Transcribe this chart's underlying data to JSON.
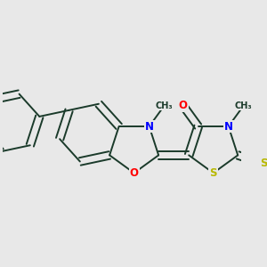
{
  "bg_color": "#e8e8e8",
  "bond_color": "#1a3a2a",
  "N_color": "#0000ff",
  "O_color": "#ff0000",
  "S_color": "#b8b800",
  "bond_width": 1.4,
  "figsize": [
    3.0,
    3.0
  ],
  "dpi": 100,
  "xlim": [
    -1.6,
    1.4
  ],
  "ylim": [
    -1.0,
    1.1
  ]
}
